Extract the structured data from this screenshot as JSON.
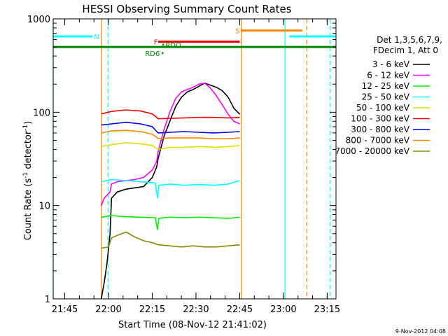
{
  "chart_data": {
    "type": "line",
    "title": "HESSI Observing Summary Count Rates",
    "xlabel": "Start Time (08-Nov-12 21:41:02)",
    "ylabel_main": "Count Rate (s",
    "ylabel_sup1": "-1",
    "ylabel_mid": " detector",
    "ylabel_sup2": "-1",
    "ylabel_end": ")",
    "x_unit": "minutes since 21:41:02",
    "xlim": [
      0,
      97
    ],
    "ylim": [
      1,
      1000
    ],
    "yscale": "log",
    "x_ticks": [
      {
        "label": "21:45",
        "x": 3.97
      },
      {
        "label": "22:00",
        "x": 18.97
      },
      {
        "label": "22:15",
        "x": 33.97
      },
      {
        "label": "22:30",
        "x": 48.97
      },
      {
        "label": "22:45",
        "x": 63.97
      },
      {
        "label": "23:00",
        "x": 78.97
      },
      {
        "label": "23:15",
        "x": 93.97
      }
    ],
    "y_ticks": [
      {
        "label": "1",
        "y": 1
      },
      {
        "label": "10",
        "y": 10
      },
      {
        "label": "100",
        "y": 100
      },
      {
        "label": "1000",
        "y": 1000
      }
    ],
    "legend": {
      "header1": "Det 1,3,5,6,7,9,",
      "header2": "FDecim 1, Att 0",
      "placement": "right"
    },
    "series": [
      {
        "name": "3 - 6 keV",
        "color": "#000000",
        "x": [
          16.5,
          17.5,
          18.5,
          19.5,
          20,
          22,
          25,
          28,
          31,
          34,
          35.5,
          36,
          38,
          40,
          42,
          44,
          46,
          48,
          50,
          52,
          54,
          56,
          58,
          60,
          62,
          64
        ],
        "y": [
          1,
          1.5,
          2.5,
          5,
          12,
          14,
          15,
          15.5,
          16,
          20,
          26,
          32,
          55,
          80,
          115,
          145,
          165,
          175,
          190,
          205,
          195,
          185,
          170,
          145,
          110,
          95
        ]
      },
      {
        "name": "6 - 12 keV",
        "color": "#ff00ff",
        "x": [
          16.5,
          17.5,
          19.5,
          20,
          22,
          25,
          28,
          31,
          34,
          35.5,
          36,
          38,
          40,
          42,
          44,
          46,
          48,
          50,
          52,
          54,
          56,
          58,
          60,
          62,
          64
        ],
        "y": [
          10,
          12,
          14,
          17,
          18,
          18.5,
          19,
          20,
          24,
          30,
          38,
          65,
          100,
          140,
          165,
          175,
          185,
          200,
          205,
          180,
          150,
          120,
          95,
          80,
          75
        ]
      },
      {
        "name": "12 - 25 keV",
        "color": "#00ee00",
        "x": [
          16.5,
          20,
          25,
          30,
          35,
          35.8,
          36.2,
          40,
          45,
          50,
          55,
          60,
          64
        ],
        "y": [
          7.5,
          7.8,
          7.6,
          7.5,
          7.4,
          5.5,
          7.3,
          7.5,
          7.4,
          7.5,
          7.4,
          7.3,
          7.5
        ]
      },
      {
        "name": "25 - 50 keV",
        "color": "#00ffff",
        "x": [
          16.5,
          20,
          25,
          30,
          35,
          35.8,
          36.2,
          40,
          45,
          50,
          55,
          60,
          64
        ],
        "y": [
          18,
          19,
          18.5,
          18,
          17.5,
          12,
          16.5,
          17,
          16.5,
          16.8,
          16.5,
          17,
          18.5
        ]
      },
      {
        "name": "50 - 100 keV",
        "color": "#dddd00",
        "x": [
          16.5,
          20,
          25,
          30,
          34,
          35.5,
          36,
          40,
          45,
          50,
          55,
          60,
          64
        ],
        "y": [
          43,
          45,
          47,
          46,
          44,
          41,
          40,
          42,
          42,
          43,
          42,
          43,
          44
        ]
      },
      {
        "name": "100 - 300 keV",
        "color": "#ee0000",
        "x": [
          16.5,
          20,
          25,
          30,
          34,
          35.5,
          36,
          40,
          45,
          50,
          55,
          60,
          64
        ],
        "y": [
          96,
          102,
          106,
          103,
          96,
          88,
          85,
          86,
          87,
          88,
          88,
          87,
          88
        ]
      },
      {
        "name": "300 - 800 keV",
        "color": "#0000ee",
        "x": [
          16.5,
          20,
          25,
          30,
          34,
          35.5,
          36,
          40,
          45,
          50,
          55,
          60,
          64
        ],
        "y": [
          73,
          75,
          78,
          75,
          70,
          62,
          60,
          61,
          62,
          61,
          60,
          61,
          62
        ]
      },
      {
        "name": "800 - 7000 keV",
        "color": "#ff8800",
        "x": [
          16.5,
          20,
          25,
          30,
          34,
          35.5,
          36,
          40,
          45,
          50,
          55,
          60,
          64
        ],
        "y": [
          60,
          63,
          64,
          62,
          58,
          54,
          52,
          53,
          53,
          53,
          52,
          52,
          53
        ]
      },
      {
        "name": "7000 - 20000 keV",
        "color": "#888800",
        "x": [
          16.5,
          19,
          20,
          22,
          25,
          28,
          31,
          34,
          36,
          40,
          44,
          48,
          52,
          56,
          60,
          64
        ],
        "y": [
          3.5,
          3.6,
          4.5,
          4.8,
          5.2,
          4.6,
          4.2,
          4,
          3.8,
          3.7,
          3.6,
          3.7,
          3.6,
          3.6,
          3.7,
          3.8
        ]
      }
    ],
    "flag_bars": [
      {
        "label": "N",
        "color": "#00ffff",
        "x": [
          0,
          13.5
        ],
        "y": 650,
        "label_x": 14
      },
      {
        "label": "N",
        "color": "#00ffff",
        "x": [
          81,
          97
        ],
        "y": 650
      },
      {
        "label": "S",
        "color": "#ff8800",
        "x": [
          64.5,
          85.5
        ],
        "y": 750,
        "label_x": 62.5
      },
      {
        "label": "F",
        "color": "#ee0000",
        "x": [
          36,
          64
        ],
        "y": 570,
        "label_x": 34.5
      },
      {
        "label": "RDO",
        "color": "#008800",
        "x": [
          37.5,
          38
        ],
        "y": 530,
        "label_x": 38.5
      },
      {
        "label": "RD6",
        "color": "#008800",
        "x": [
          37.3,
          37.8
        ],
        "y": 430,
        "label_x": 31.5
      },
      {
        "label": "",
        "color": "#008800",
        "x": [
          0,
          97
        ],
        "y": 500
      }
    ],
    "vertical_lines": [
      {
        "x": 0,
        "color": "#00ffff",
        "dashed": false
      },
      {
        "x": 16.5,
        "color": "#ff8800",
        "dashed": false
      },
      {
        "x": 18.8,
        "color": "#00ffff",
        "dashed": true
      },
      {
        "x": 64.5,
        "color": "#ff8800",
        "dashed": false
      },
      {
        "x": 79.5,
        "color": "#00ffff",
        "dashed": false
      },
      {
        "x": 87.0,
        "color": "#ff8800",
        "dashed": true
      },
      {
        "x": 95.0,
        "color": "#00ffff",
        "dashed": true
      }
    ],
    "timestamp": "9-Nov-2012 04:08"
  }
}
